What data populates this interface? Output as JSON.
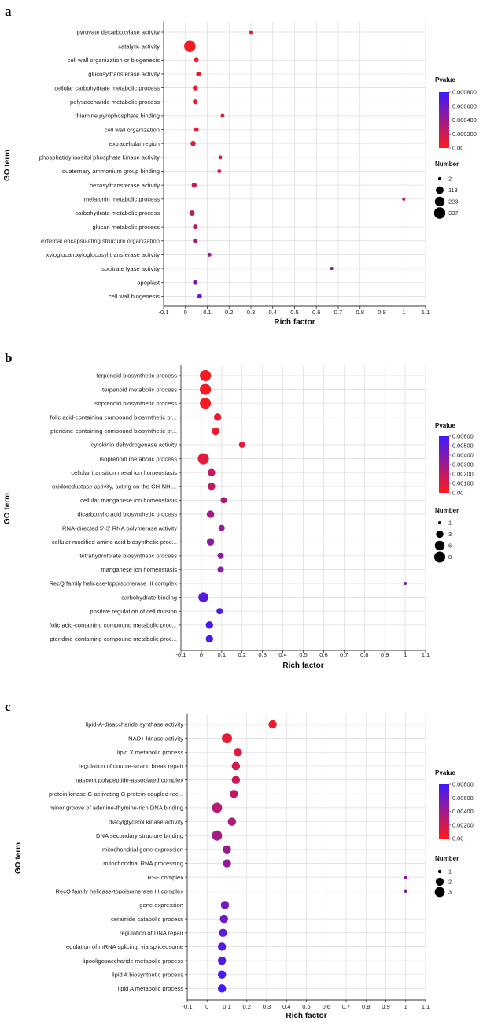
{
  "chart_data": [
    {
      "panel": "a",
      "type": "scatter",
      "xlabel": "Rich factor",
      "ylabel": "GO term",
      "xlim": [
        -0.1,
        1.1
      ],
      "xticks": [
        "-0.1",
        "0",
        "0.1",
        "0.2",
        "0.3",
        "0.4",
        "0.5",
        "0.6",
        "0.7",
        "0.8",
        "0.9",
        "1",
        "1.1"
      ],
      "colorbar": {
        "title": "Pvalue",
        "ticks": [
          "0.000800",
          "0.000600",
          "0.000400",
          "0.000200",
          "0.00"
        ],
        "max": 0.0008
      },
      "size_legend": {
        "title": "Number",
        "entries": [
          2,
          113,
          223,
          337
        ],
        "max": 337
      },
      "terms": [
        {
          "label": "pyruvate decarboxylase activity",
          "rich": 0.3,
          "number": 4,
          "pvalue": 5e-05
        },
        {
          "label": "catalytic activity",
          "rich": 0.02,
          "number": 337,
          "pvalue": 2e-05
        },
        {
          "label": "cell wall organization or biogenesis",
          "rich": 0.05,
          "number": 15,
          "pvalue": 5e-05
        },
        {
          "label": "glucosyltransferase activity",
          "rich": 0.06,
          "number": 18,
          "pvalue": 6e-05
        },
        {
          "label": "cellular carbohydrate metabolic process",
          "rich": 0.045,
          "number": 22,
          "pvalue": 8e-05
        },
        {
          "label": "polysaccharide metabolic process",
          "rich": 0.045,
          "number": 20,
          "pvalue": 8e-05
        },
        {
          "label": "thiamine pyrophosphate binding",
          "rich": 0.17,
          "number": 5,
          "pvalue": 0.0001
        },
        {
          "label": "cell wall organization",
          "rich": 0.05,
          "number": 16,
          "pvalue": 0.0001
        },
        {
          "label": "extracellular region",
          "rich": 0.035,
          "number": 25,
          "pvalue": 0.00012
        },
        {
          "label": "phosphatidylinositol phosphate kinase activity",
          "rich": 0.16,
          "number": 5,
          "pvalue": 0.00013
        },
        {
          "label": "quaternary ammonium group binding",
          "rich": 0.155,
          "number": 5,
          "pvalue": 0.00014
        },
        {
          "label": "hexosyltransferase activity",
          "rich": 0.04,
          "number": 22,
          "pvalue": 0.0002
        },
        {
          "label": "melatonin metabolic process",
          "rich": 1.0,
          "number": 2,
          "pvalue": 0.00022
        },
        {
          "label": "carbohydrate metabolic process",
          "rich": 0.03,
          "number": 30,
          "pvalue": 0.00028
        },
        {
          "label": "glucan metabolic process",
          "rich": 0.045,
          "number": 17,
          "pvalue": 0.0003
        },
        {
          "label": "external encapsulating structure organization",
          "rich": 0.045,
          "number": 16,
          "pvalue": 0.00034
        },
        {
          "label": "xyloglucan:xyloglucosyl transferase activity",
          "rich": 0.11,
          "number": 6,
          "pvalue": 0.00045
        },
        {
          "label": "isocitrate lyase activity",
          "rich": 0.67,
          "number": 2,
          "pvalue": 0.0005
        },
        {
          "label": "apoplast",
          "rich": 0.045,
          "number": 15,
          "pvalue": 0.00055
        },
        {
          "label": "cell wall biogenesis",
          "rich": 0.065,
          "number": 14,
          "pvalue": 0.00062
        }
      ]
    },
    {
      "panel": "b",
      "type": "scatter",
      "xlabel": "Rich factor",
      "ylabel": "GO term",
      "xlim": [
        -0.1,
        1.1
      ],
      "xticks": [
        "-0.1",
        "0",
        "0.1",
        "0.2",
        "0.3",
        "0.4",
        "0.5",
        "0.6",
        "0.7",
        "0.8",
        "0.9",
        "1",
        "1.1"
      ],
      "colorbar": {
        "title": "Pvalue",
        "ticks": [
          "0.00600",
          "0.00500",
          "0.00400",
          "0.00300",
          "0.00200",
          "0.00100",
          "0.00"
        ],
        "max": 0.006
      },
      "size_legend": {
        "title": "Number",
        "entries": [
          1,
          3,
          6,
          8
        ],
        "max": 8
      },
      "terms": [
        {
          "label": "terpenoid biosynthetic process",
          "rich": 0.02,
          "number": 8,
          "pvalue": 0.0001
        },
        {
          "label": "terpenoid metabolic process",
          "rich": 0.02,
          "number": 8,
          "pvalue": 0.0002
        },
        {
          "label": "isoprenoid biosynthetic process",
          "rich": 0.02,
          "number": 8,
          "pvalue": 0.0002
        },
        {
          "label": "folic acid-containing compound biosynthetic pr...",
          "rich": 0.08,
          "number": 3,
          "pvalue": 0.0005
        },
        {
          "label": "pteridine-containing compound biosynthetic pr...",
          "rich": 0.07,
          "number": 3,
          "pvalue": 0.0006
        },
        {
          "label": "cytokinin dehydrogenase activity",
          "rich": 0.2,
          "number": 2,
          "pvalue": 0.0008
        },
        {
          "label": "isoprenoid metabolic process",
          "rich": 0.01,
          "number": 8,
          "pvalue": 0.0009
        },
        {
          "label": "cellular transition metal ion homeostasis",
          "rich": 0.05,
          "number": 3,
          "pvalue": 0.0018
        },
        {
          "label": "oxidoreductase activity, acting on the CH-NH ...",
          "rich": 0.05,
          "number": 3,
          "pvalue": 0.002
        },
        {
          "label": "cellular manganese ion homeostasis",
          "rich": 0.11,
          "number": 2,
          "pvalue": 0.0026
        },
        {
          "label": "dicarboxylic acid biosynthetic process",
          "rich": 0.045,
          "number": 3,
          "pvalue": 0.0028
        },
        {
          "label": "RNA-directed 5'-3' RNA polymerase activity",
          "rich": 0.1,
          "number": 2,
          "pvalue": 0.0032
        },
        {
          "label": "cellular modified amino acid biosynthetic proc...",
          "rich": 0.045,
          "number": 3,
          "pvalue": 0.0034
        },
        {
          "label": "tetrahydrofolate biosynthetic process",
          "rich": 0.095,
          "number": 2,
          "pvalue": 0.0036
        },
        {
          "label": "manganese ion homeostasis",
          "rich": 0.095,
          "number": 2,
          "pvalue": 0.0038
        },
        {
          "label": "RecQ family helicase-topoisomerase III complex",
          "rich": 1.0,
          "number": 1,
          "pvalue": 0.0042
        },
        {
          "label": "carbohydrate binding",
          "rich": 0.01,
          "number": 6,
          "pvalue": 0.0052
        },
        {
          "label": "positive regulation of cell division",
          "rich": 0.09,
          "number": 2,
          "pvalue": 0.0054
        },
        {
          "label": "folic acid-containing compound metabolic proc...",
          "rich": 0.04,
          "number": 3,
          "pvalue": 0.0056
        },
        {
          "label": "pteridine-containing compound metabolic proc...",
          "rich": 0.04,
          "number": 3,
          "pvalue": 0.0058
        }
      ]
    },
    {
      "panel": "c",
      "type": "scatter",
      "xlabel": "Rich factor",
      "ylabel": "GO term",
      "xlim": [
        -0.1,
        1.1
      ],
      "xticks": [
        "-0.1",
        "0",
        "0.1",
        "0.2",
        "0.3",
        "0.4",
        "0.5",
        "0.6",
        "0.7",
        "0.8",
        "0.9",
        "1",
        "1.1"
      ],
      "colorbar": {
        "title": "Pvalue",
        "ticks": [
          "0.00800",
          "0.00600",
          "0.00400",
          "0.00200",
          "0.00"
        ],
        "max": 0.008
      },
      "size_legend": {
        "title": "Number",
        "entries": [
          1,
          2,
          3
        ],
        "max": 3
      },
      "terms": [
        {
          "label": "lipid-A-disaccharide synthase activity",
          "rich": 0.33,
          "number": 2,
          "pvalue": 0.0006
        },
        {
          "label": "NAD+ kinase activity",
          "rich": 0.1,
          "number": 3,
          "pvalue": 0.0009
        },
        {
          "label": "lipid X metabolic process",
          "rich": 0.155,
          "number": 2,
          "pvalue": 0.0013
        },
        {
          "label": "regulation of double-strand break repair",
          "rich": 0.145,
          "number": 2,
          "pvalue": 0.0018
        },
        {
          "label": "nascent polypeptide-associated complex",
          "rich": 0.145,
          "number": 2,
          "pvalue": 0.0022
        },
        {
          "label": "protein kinase C-activating G protein-coupled rec...",
          "rich": 0.135,
          "number": 2,
          "pvalue": 0.0026
        },
        {
          "label": "minor groove of adenine-thymine-rich DNA binding",
          "rich": 0.05,
          "number": 3,
          "pvalue": 0.003
        },
        {
          "label": "diacylglycerol kinase activity",
          "rich": 0.125,
          "number": 2,
          "pvalue": 0.0033
        },
        {
          "label": "DNA secondary structure binding",
          "rich": 0.05,
          "number": 3,
          "pvalue": 0.0037
        },
        {
          "label": "mitochondrial gene expression",
          "rich": 0.1,
          "number": 2,
          "pvalue": 0.0042
        },
        {
          "label": "mitochondrial RNA processing",
          "rich": 0.1,
          "number": 2,
          "pvalue": 0.0045
        },
        {
          "label": "RSF complex",
          "rich": 1.0,
          "number": 1,
          "pvalue": 0.0048
        },
        {
          "label": "RecQ family helicase-topoisomerase III complex",
          "rich": 1.0,
          "number": 1,
          "pvalue": 0.005
        },
        {
          "label": "gene expression",
          "rich": 0.09,
          "number": 2,
          "pvalue": 0.0058
        },
        {
          "label": "ceramide catabolic process",
          "rich": 0.085,
          "number": 2,
          "pvalue": 0.0062
        },
        {
          "label": "regulation of DNA repair",
          "rich": 0.08,
          "number": 2,
          "pvalue": 0.0066
        },
        {
          "label": "regulation of mRNA splicing, via spliceosome",
          "rich": 0.075,
          "number": 2,
          "pvalue": 0.007
        },
        {
          "label": "lipooligosaccharide metabolic process",
          "rich": 0.075,
          "number": 2,
          "pvalue": 0.0073
        },
        {
          "label": "lipid A biosynthetic process",
          "rich": 0.075,
          "number": 2,
          "pvalue": 0.0076
        },
        {
          "label": "lipid A metabolic process",
          "rich": 0.075,
          "number": 2,
          "pvalue": 0.0078
        }
      ]
    }
  ]
}
